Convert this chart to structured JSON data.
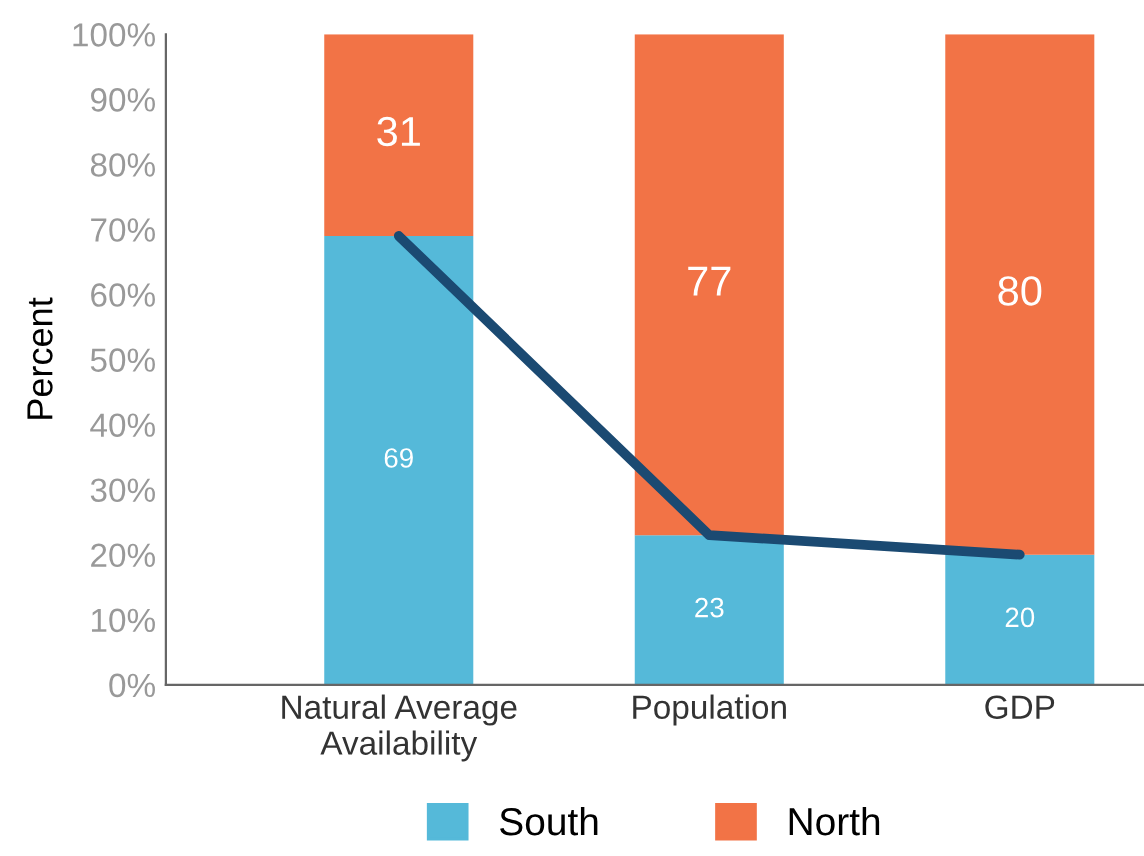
{
  "chart_data": {
    "type": "bar",
    "stacked": true,
    "ylabel": "Percent",
    "categories": [
      "Natural Average\nAvailability",
      "Population",
      "GDP"
    ],
    "series": [
      {
        "name": "South",
        "color": "#55b9d9",
        "values": [
          69,
          23,
          20
        ]
      },
      {
        "name": "North",
        "color": "#f27346",
        "values": [
          31,
          77,
          80
        ]
      },
      {
        "type": "line",
        "color": "#1b4a72",
        "values": [
          69,
          23,
          20
        ],
        "value_labels": [
          null,
          null,
          null
        ],
        "marker": "none",
        "line_style": "solid"
      }
    ],
    "ylim": [
      0,
      100
    ],
    "yticks": [
      {
        "value": 0,
        "label": "0%"
      },
      {
        "value": 10,
        "label": "10%"
      },
      {
        "value": 20,
        "label": "20%"
      },
      {
        "value": 30,
        "label": "30%"
      },
      {
        "value": 40,
        "label": "40%"
      },
      {
        "value": 50,
        "label": "50%"
      },
      {
        "value": 60,
        "label": "60%"
      },
      {
        "value": 70,
        "label": "70%"
      },
      {
        "value": 80,
        "label": "80%"
      },
      {
        "value": 90,
        "label": "90%"
      },
      {
        "value": 100,
        "label": "100%"
      }
    ],
    "data_labels": true,
    "grid": false,
    "legend": "bottom"
  }
}
